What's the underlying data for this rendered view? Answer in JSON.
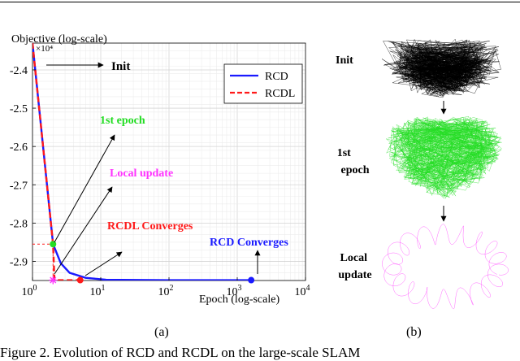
{
  "chart_data": {
    "type": "line",
    "xlabel": "Epoch (log-scale)",
    "ylabel": "Objective (log-scale)",
    "y_multiplier": "×10⁴",
    "x_scale": "log",
    "xlim": [
      1,
      10000
    ],
    "ylim": [
      -2.95,
      -2.33
    ],
    "grid": true,
    "legend_position": "top-right",
    "x_ticks": [
      1,
      10,
      100,
      1000,
      10000
    ],
    "x_tick_labels": [
      {
        "base": "10",
        "exp": "0"
      },
      {
        "base": "10",
        "exp": "1"
      },
      {
        "base": "10",
        "exp": "2"
      },
      {
        "base": "10",
        "exp": "3"
      },
      {
        "base": "10",
        "exp": "4"
      }
    ],
    "y_ticks": [
      -2.4,
      -2.5,
      -2.6,
      -2.7,
      -2.8,
      -2.9
    ],
    "y_tick_labels": [
      "-2.4",
      "-2.5",
      "-2.6",
      "-2.7",
      "-2.8",
      "-2.9"
    ],
    "series": [
      {
        "name": "RCD",
        "color": "#1a1aff",
        "style": "solid",
        "points": [
          [
            1,
            -2.33
          ],
          [
            2,
            -2.855
          ],
          [
            2.6,
            -2.905
          ],
          [
            3.5,
            -2.93
          ],
          [
            6,
            -2.943
          ],
          [
            12,
            -2.948
          ],
          [
            100,
            -2.949
          ],
          [
            1600,
            -2.949
          ]
        ]
      },
      {
        "name": "RCDL",
        "color": "#ff1a1a",
        "style": "dashed",
        "points": [
          [
            1,
            -2.33
          ],
          [
            2,
            -2.855
          ],
          [
            2.1,
            -2.949
          ],
          [
            5,
            -2.949
          ]
        ]
      }
    ],
    "markers": [
      {
        "x": 2,
        "y": -2.855,
        "color": "#22dd22",
        "shape": "circle"
      },
      {
        "x": 5,
        "y": -2.949,
        "color": "#ff1a1a",
        "shape": "circle"
      },
      {
        "x": 1600,
        "y": -2.949,
        "color": "#1a1aff",
        "shape": "circle"
      },
      {
        "x": 2,
        "y": -2.949,
        "color": "#ff33ff",
        "shape": "star"
      }
    ],
    "annotations": [
      {
        "text": "Init",
        "color": "#000000"
      },
      {
        "text": "1st epoch",
        "color": "#22dd22"
      },
      {
        "text": "Local update",
        "color": "#ff33ff"
      },
      {
        "text": "RCDL Converges",
        "color": "#ff1a1a"
      },
      {
        "text": "RCD Converges",
        "color": "#1a1aff"
      }
    ]
  },
  "panel_a_label": "(a)",
  "panel_b_label": "(b)",
  "panel_b": {
    "stages": [
      {
        "label_lines": [
          "Init"
        ],
        "color": "#000000"
      },
      {
        "label_lines": [
          "1st",
          "epoch"
        ],
        "color": "#22dd22"
      },
      {
        "label_lines": [
          "Local",
          "update"
        ],
        "color": "#ff33ff"
      }
    ]
  },
  "caption": "Figure 2. Evolution of RCD and RCDL on the large-scale SLAM"
}
